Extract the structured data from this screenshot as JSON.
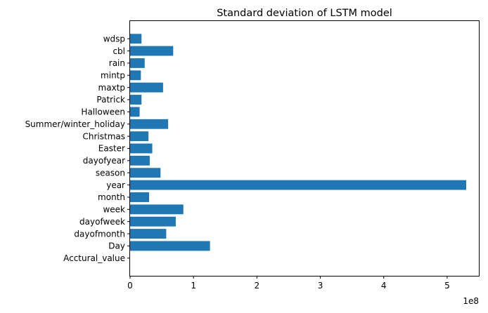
{
  "chart_data": {
    "type": "bar",
    "orientation": "horizontal",
    "title": "Standard deviation of LSTM model",
    "xlabel": "",
    "ylabel": "",
    "x_multiplier_label": "1e8",
    "x_scale": 100000000,
    "xlim": [
      0,
      5.5
    ],
    "x_ticks": [
      0,
      1,
      2,
      3,
      4,
      5
    ],
    "grid": false,
    "legend": "none",
    "bar_color": "#1f77b4",
    "categories": [
      "Acctural_value",
      "Day",
      "dayofmonth",
      "dayofweek",
      "week",
      "month",
      "year",
      "season",
      "dayofyear",
      "Easter",
      "Christmas",
      "Summer/winter_holiday",
      "Halloween",
      "Patrick",
      "maxtp",
      "mintp",
      "rain",
      "cbl",
      "wdsp"
    ],
    "values": [
      0,
      126000000,
      57000000,
      72000000,
      84000000,
      30000000,
      530000000,
      48000000,
      31000000,
      35000000,
      29000000,
      60000000,
      15000000,
      18000000,
      52000000,
      17000000,
      23000000,
      68000000,
      18000000
    ]
  }
}
